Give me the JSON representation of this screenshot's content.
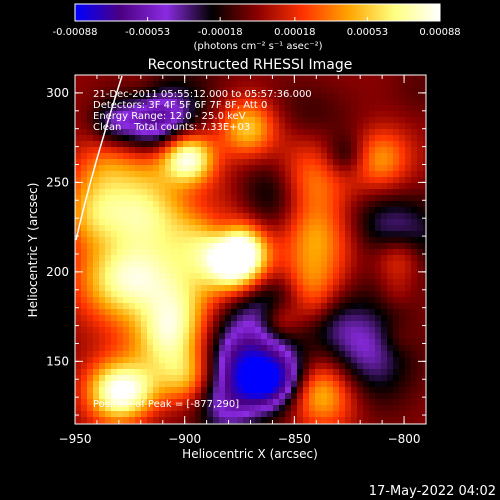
{
  "colorbar": {
    "ticks": [
      "-0.00088",
      "-0.00053",
      "-0.00018",
      "0.00018",
      "0.00053",
      "0.00088"
    ],
    "tick_values": [
      -0.00088,
      -0.00053,
      -0.00018,
      0.00018,
      0.00053,
      0.00088
    ],
    "range": [
      -0.00088,
      0.00088
    ],
    "unit_label": "(photons cm⁻² s⁻¹ asec⁻²)",
    "colors": [
      "#0000ff",
      "#4b0082",
      "#8b2be2",
      "#000000",
      "#8b0000",
      "#ff3300",
      "#ffa500",
      "#ffff80",
      "#ffffff"
    ]
  },
  "chart_data": {
    "type": "heatmap",
    "title": "Reconstructed RHESSI Image",
    "xlabel": "Heliocentric X (arcsec)",
    "ylabel": "Heliocentric Y (arcsec)",
    "xlim": [
      -950,
      -790
    ],
    "ylim": [
      115,
      310
    ],
    "x_ticks": [
      -950,
      -900,
      -850,
      -800
    ],
    "x_tick_labels": [
      "−950",
      "−900",
      "−850",
      "−800"
    ],
    "y_ticks": [
      150,
      200,
      250,
      300
    ],
    "y_tick_labels": [
      "150",
      "200",
      "250",
      "300"
    ],
    "annotations": [
      "21-Dec-2011 05:55:12.000 to 05:57:36.000",
      "Detectors: 3F 4F 5F 6F 7F 8F, Att 0",
      "Energy Range: 12.0 - 25.0 keV",
      "Clean    Total counts: 7.33E+03"
    ],
    "peak_label": "Position of Peak = [-877,290]",
    "peak_position": [
      -877,
      290
    ],
    "grid": false
  },
  "timestamp": "17-May-2022 04:02"
}
